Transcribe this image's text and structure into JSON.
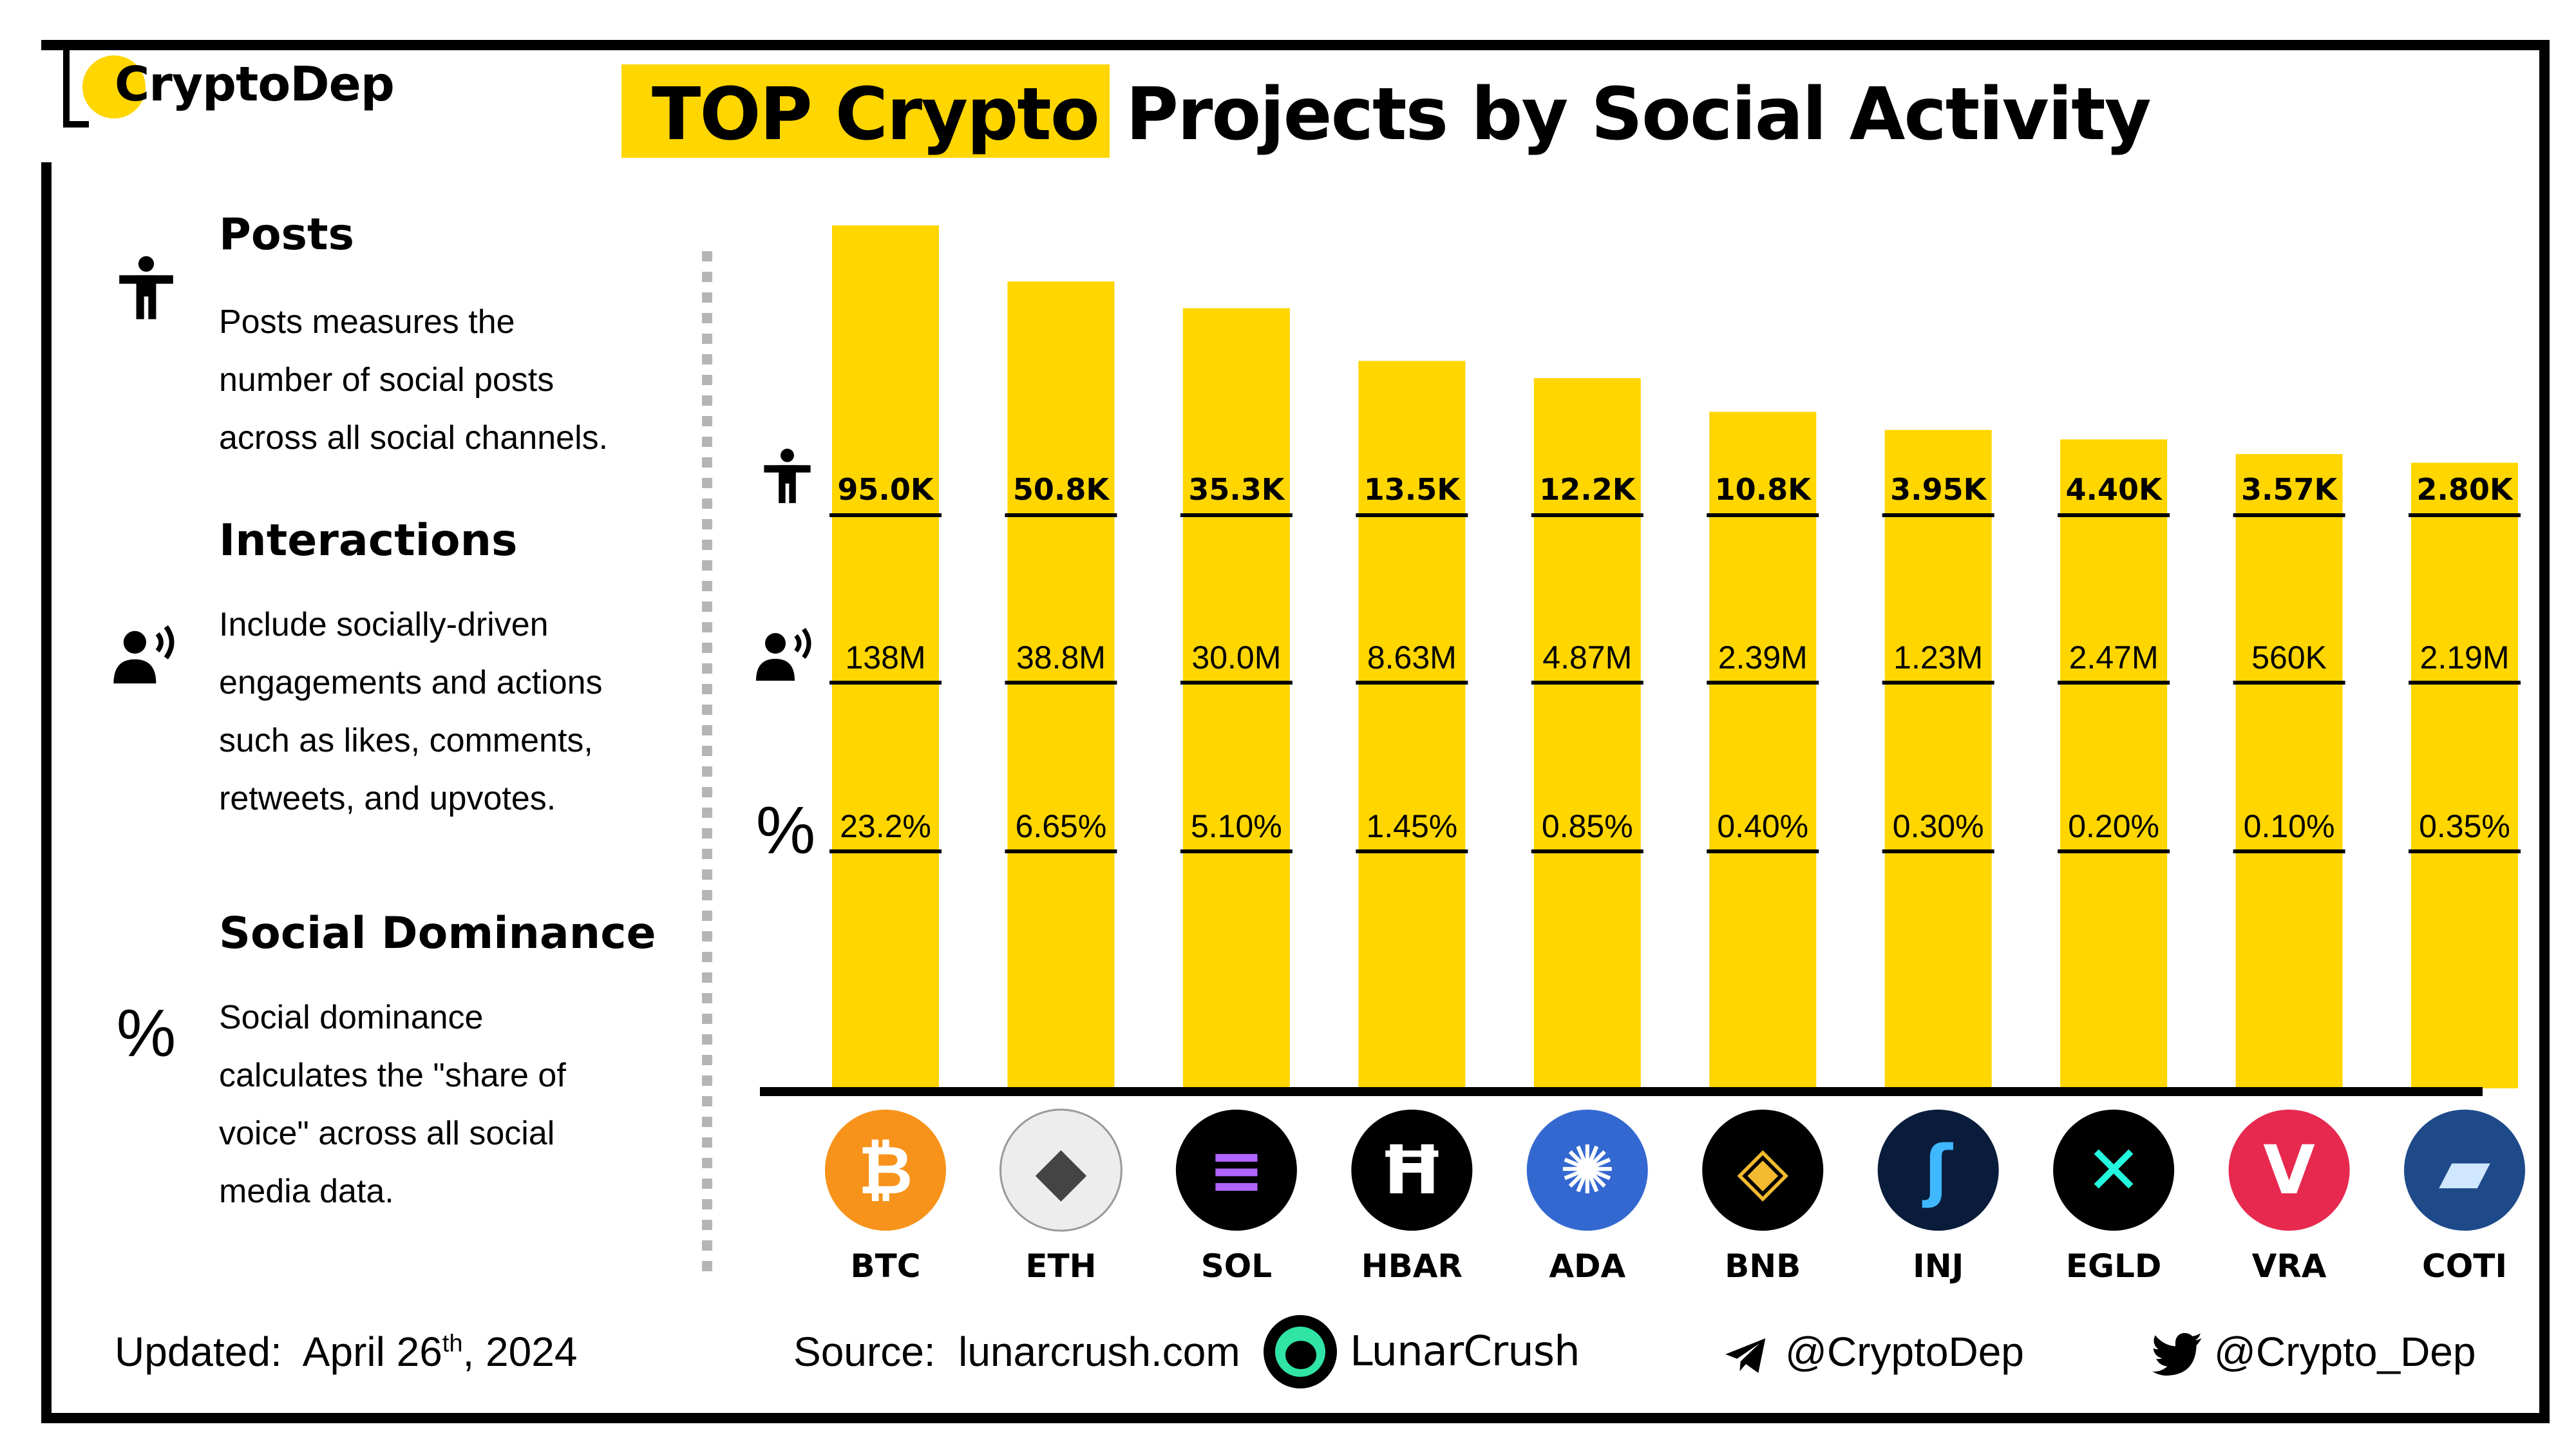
{
  "brand": {
    "name": "CryptoDep"
  },
  "title": {
    "highlight": "TOP Crypto",
    "rest": "Projects by Social Activity"
  },
  "legend": [
    {
      "title": "Posts",
      "icon": "person-icon",
      "lines": [
        "Posts measures the",
        "number of social posts",
        "across all social channels."
      ]
    },
    {
      "title": "Interactions",
      "icon": "speaking-person-icon",
      "lines": [
        "Include socially-driven",
        "engagements and actions",
        "such as likes, comments,",
        "retweets, and upvotes."
      ]
    },
    {
      "title": "Social Dominance",
      "icon": "percent-icon",
      "glyph": "%",
      "lines": [
        "Social dominance",
        "calculates the \"share of",
        "voice\" across all social",
        "media data."
      ]
    }
  ],
  "colors": {
    "bar": "#FFD600",
    "accent": "#FFD600",
    "ink": "#000000"
  },
  "chart_data": {
    "type": "table",
    "categories": [
      "BTC",
      "ETH",
      "SOL",
      "HBAR",
      "ADA",
      "BNB",
      "INJ",
      "EGLD",
      "VRA",
      "COTI"
    ],
    "series": [
      {
        "name": "Posts",
        "labels": [
          "95.0K",
          "50.8K",
          "35.3K",
          "13.5K",
          "12.2K",
          "10.8K",
          "3.95K",
          "4.40K",
          "3.57K",
          "2.80K"
        ],
        "values": [
          95000,
          50800,
          35300,
          13500,
          12200,
          10800,
          3950,
          4400,
          3570,
          2800
        ]
      },
      {
        "name": "Interactions",
        "labels": [
          "138M",
          "38.8M",
          "30.0M",
          "8.63M",
          "4.87M",
          "2.39M",
          "1.23M",
          "2.47M",
          "560K",
          "2.19M"
        ],
        "values": [
          138000000,
          38800000,
          30000000,
          8630000,
          4870000,
          2390000,
          1230000,
          2470000,
          560000,
          2190000
        ]
      },
      {
        "name": "Social Dominance",
        "labels": [
          "23.2%",
          "6.65%",
          "5.10%",
          "1.45%",
          "0.85%",
          "0.40%",
          "0.30%",
          "0.20%",
          "0.10%",
          "0.35%"
        ],
        "values": [
          23.2,
          6.65,
          5.1,
          1.45,
          0.85,
          0.4,
          0.3,
          0.2,
          0.1,
          0.35
        ]
      }
    ],
    "bar_heights_relative": [
      1.0,
      0.935,
      0.904,
      0.843,
      0.823,
      0.784,
      0.763,
      0.752,
      0.735,
      0.725
    ],
    "coin_icons": [
      "bitcoin-icon",
      "ethereum-icon",
      "solana-icon",
      "hedera-icon",
      "cardano-icon",
      "bnb-icon",
      "injective-icon",
      "multiversx-icon",
      "verasity-icon",
      "coti-icon"
    ],
    "coin_colors": [
      "#F7931A",
      "#EDEDED",
      "#000000",
      "#000000",
      "#3468D1",
      "#000000",
      "#0A1C3C",
      "#000000",
      "#E8294F",
      "#1E4A8A"
    ]
  },
  "footer": {
    "updated_label": "Updated:",
    "updated_date": "April 26",
    "updated_sup": "th",
    "updated_year": ", 2024",
    "source_label": "Source:",
    "source_value": "lunarcrush.com",
    "partner": "LunarCrush",
    "telegram": "@CryptoDep",
    "twitter": "@Crypto_Dep"
  }
}
